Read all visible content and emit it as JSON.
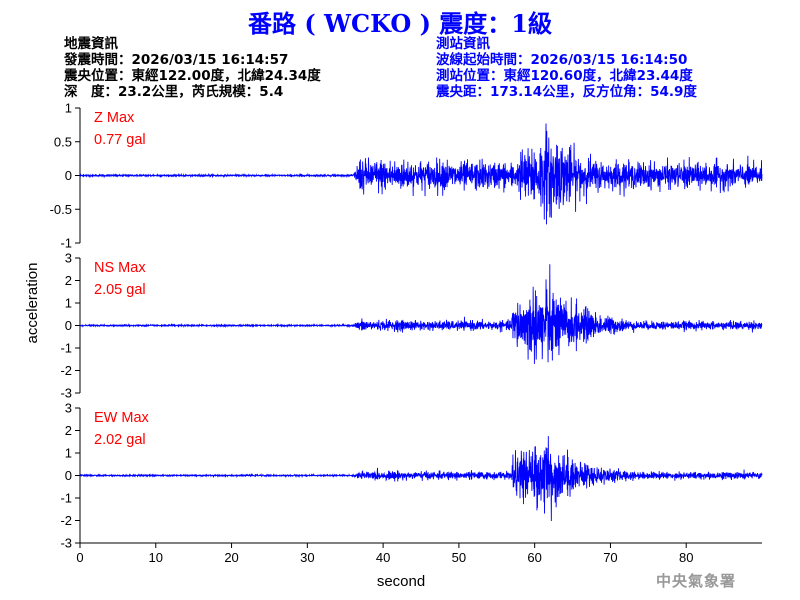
{
  "title": "番路 ( WCKO ) 震度：1級",
  "earthquake_info": {
    "heading": "地震資訊",
    "origin_time": "發震時間：2026/03/15 16:14:57",
    "epicenter": "震央位置：東經122.00度，北緯24.34度",
    "depth_magnitude": "深　度：23.2公里，芮氏規模：5.4"
  },
  "station_info": {
    "heading": "測站資訊",
    "wave_start": "波線起始時間：2026/03/15 16:14:50",
    "location": "測站位置：東經120.60度，北緯23.44度",
    "distance_azimuth": "震央距：173.14公里，反方位角：54.9度"
  },
  "logo_text": "中央氣象署",
  "colors": {
    "trace": "#0000ff",
    "title": "#0000ff",
    "max_label": "#ff0000",
    "axis": "#000000",
    "logo": "#999999"
  },
  "chart_data": {
    "type": "line",
    "xlabel": "second",
    "ylabel": "acceleration",
    "xlim": [
      0,
      90
    ],
    "x_ticks": [
      0,
      10,
      20,
      30,
      40,
      50,
      60,
      70,
      80
    ],
    "grid": false,
    "panels": [
      {
        "component": "Z",
        "label": "Z Max",
        "max_value": "0.77 gal",
        "ylim": [
          -1,
          1
        ],
        "y_ticks": [
          -1,
          -0.5,
          0,
          0.5,
          1
        ],
        "noise": 0.012,
        "p_arrival": 36.0,
        "p_amp": 0.22,
        "s_arrival": 58.0,
        "s_amp": 0.55,
        "peak": {
          "x": 61.5,
          "y": 0.77
        },
        "trough": {
          "x": 62.0,
          "y": -0.62
        },
        "coda_end_amp": 0.06
      },
      {
        "component": "NS",
        "label": "NS Max",
        "max_value": "2.05 gal",
        "ylim": [
          -3,
          3
        ],
        "y_ticks": [
          -3,
          -2,
          -1,
          0,
          1,
          2,
          3
        ],
        "noise": 0.03,
        "p_arrival": 36.0,
        "p_amp": 0.22,
        "s_arrival": 57.0,
        "s_amp": 1.6,
        "peak": {
          "x": 61.5,
          "y": 2.05
        },
        "trough": {
          "x": 61.0,
          "y": -1.5
        },
        "coda_end_amp": 0.08
      },
      {
        "component": "EW",
        "label": "EW Max",
        "max_value": "2.02 gal",
        "ylim": [
          -3,
          3
        ],
        "y_ticks": [
          -3,
          -2,
          -1,
          0,
          1,
          2,
          3
        ],
        "noise": 0.03,
        "p_arrival": 36.0,
        "p_amp": 0.18,
        "s_arrival": 57.0,
        "s_amp": 1.3,
        "peak": {
          "x": 61.8,
          "y": 1.75
        },
        "trough": {
          "x": 62.2,
          "y": -2.02
        },
        "coda_end_amp": 0.1
      }
    ]
  }
}
